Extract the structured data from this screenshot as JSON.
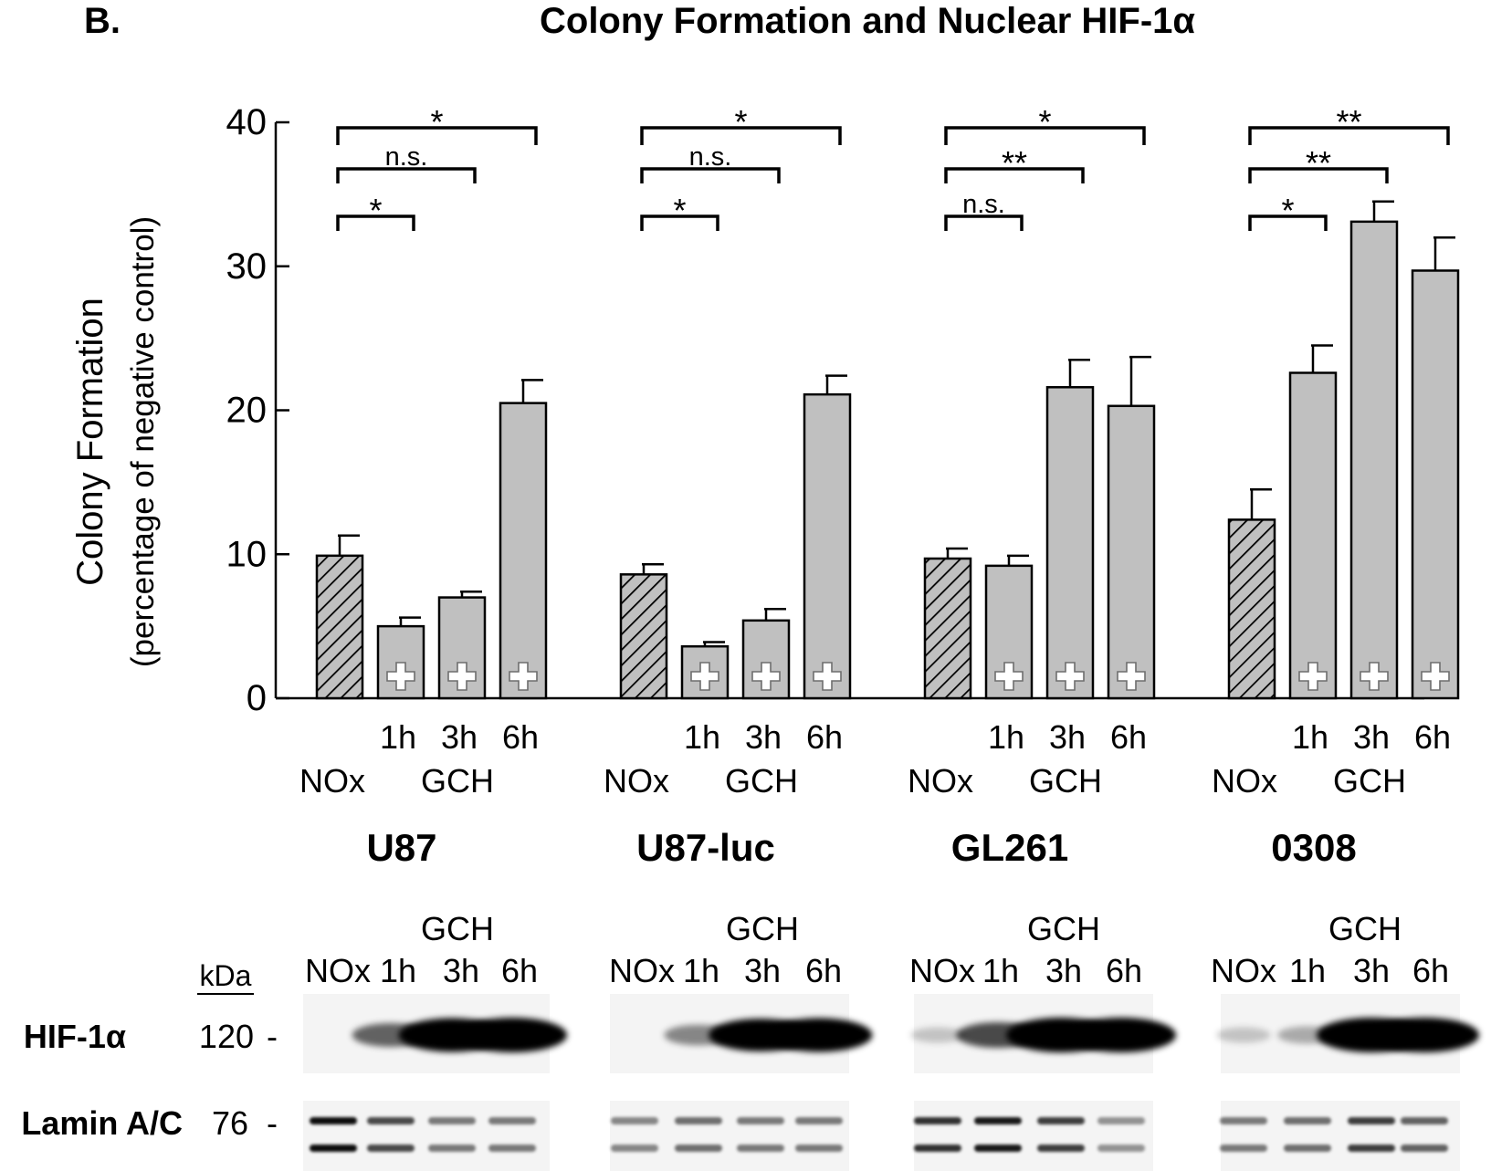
{
  "panel_label": "B.",
  "title": "Colony Formation and Nuclear HIF-1α",
  "colors": {
    "bar_fill": "#c0c0c0",
    "bar_stroke": "#000000",
    "hatch_stroke": "#000000",
    "plus_fill": "#ffffff",
    "band": "#000000",
    "blot_bg": "#f4f4f4"
  },
  "chart_data": {
    "type": "bar",
    "title": "Colony Formation and Nuclear HIF-1α",
    "ylabel": "Colony Formation",
    "ylabel_sub": "(percentage of negative control)",
    "ylim": [
      0,
      40
    ],
    "yticks": [
      0,
      10,
      20,
      30,
      40
    ],
    "treatment_label": "GCH",
    "control_label": "NOx",
    "bar_labels": [
      "NOx",
      "1h",
      "3h",
      "6h"
    ],
    "groups": [
      {
        "name": "U87",
        "values": [
          9.9,
          5.0,
          7.0,
          20.5
        ],
        "errors": [
          1.4,
          0.6,
          0.4,
          1.6
        ],
        "brackets": [
          {
            "to": 3,
            "label": "*"
          },
          {
            "to": 2,
            "label": "n.s."
          },
          {
            "to": 1,
            "label": "*"
          }
        ]
      },
      {
        "name": "U87-luc",
        "values": [
          8.6,
          3.6,
          5.4,
          21.1
        ],
        "errors": [
          0.7,
          0.3,
          0.8,
          1.3
        ],
        "brackets": [
          {
            "to": 3,
            "label": "*"
          },
          {
            "to": 2,
            "label": "n.s."
          },
          {
            "to": 1,
            "label": "*"
          }
        ]
      },
      {
        "name": "GL261",
        "values": [
          9.7,
          9.2,
          21.6,
          20.3
        ],
        "errors": [
          0.7,
          0.7,
          1.9,
          3.4
        ],
        "brackets": [
          {
            "to": 3,
            "label": "*"
          },
          {
            "to": 2,
            "label": "**"
          },
          {
            "to": 1,
            "label": "n.s."
          }
        ]
      },
      {
        "name": "0308",
        "values": [
          12.4,
          22.6,
          33.1,
          29.7
        ],
        "errors": [
          2.1,
          1.9,
          1.4,
          2.3
        ],
        "brackets": [
          {
            "to": 3,
            "label": "**"
          },
          {
            "to": 2,
            "label": "**"
          },
          {
            "to": 1,
            "label": "*"
          }
        ]
      }
    ]
  },
  "blot": {
    "kda_label": "kDa",
    "rows": [
      {
        "protein": "HIF-1α",
        "kda": "120",
        "dash": "-"
      },
      {
        "protein": "Lamin A/C",
        "kda": "76",
        "dash": "-"
      }
    ],
    "gch_label": "GCH",
    "lane_labels": [
      "NOx",
      "1h",
      "3h",
      "6h"
    ],
    "hif_intensity": [
      [
        0.0,
        0.45,
        0.95,
        1.0
      ],
      [
        0.0,
        0.3,
        0.9,
        0.95
      ],
      [
        0.05,
        0.55,
        1.0,
        1.0
      ],
      [
        0.05,
        0.15,
        1.0,
        1.0
      ]
    ],
    "lamin_intensity": [
      [
        0.95,
        0.7,
        0.5,
        0.5
      ],
      [
        0.45,
        0.55,
        0.5,
        0.5
      ],
      [
        0.8,
        0.9,
        0.75,
        0.4
      ],
      [
        0.5,
        0.55,
        0.75,
        0.6
      ]
    ]
  }
}
